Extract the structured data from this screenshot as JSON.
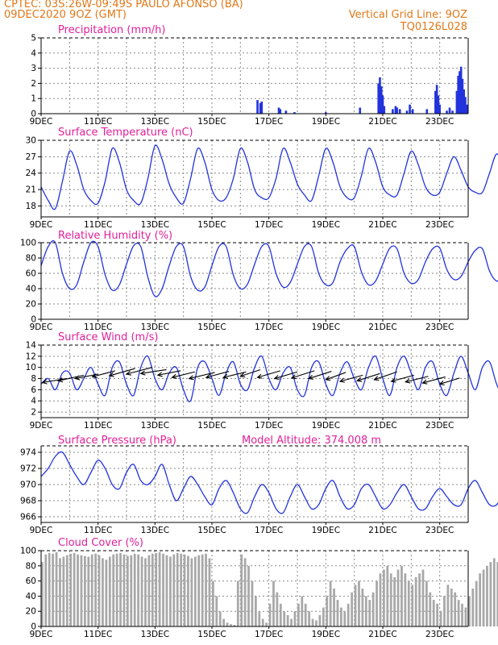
{
  "header": {
    "line1": "CPTEC:  03S:26W-09:49S  PAULO AFONSO (BA)",
    "line2": "09DEC2020 9OZ (GMT)",
    "grid_note": "Vertical Grid Line: 9OZ",
    "code": "TQ0126L028"
  },
  "colors": {
    "header": "#e07818",
    "title": "#e0209a",
    "line": "#2233dd",
    "cloud": "#a8a8a8"
  },
  "x_axis": {
    "start_day": 9,
    "end_day": 24,
    "tick_labels": [
      "9DEC",
      "11DEC",
      "13DEC",
      "15DEC",
      "17DEC",
      "19DEC",
      "21DEC",
      "23DEC"
    ],
    "tick_days": [
      9,
      11,
      13,
      15,
      17,
      19,
      21,
      23
    ]
  },
  "chart_data": [
    {
      "type": "bar",
      "title": "Precipitation (mm/h)",
      "ylim": [
        0,
        5
      ],
      "yticks": [
        0,
        1,
        2,
        3,
        4,
        5
      ],
      "points": [
        [
          16.6,
          0.9
        ],
        [
          16.7,
          0.7
        ],
        [
          16.75,
          0.8
        ],
        [
          17.35,
          0.4
        ],
        [
          17.4,
          0.3
        ],
        [
          17.6,
          0.2
        ],
        [
          17.9,
          0.1
        ],
        [
          19.0,
          0.1
        ],
        [
          20.2,
          0.4
        ],
        [
          20.85,
          2.0
        ],
        [
          20.9,
          2.4
        ],
        [
          20.95,
          1.8
        ],
        [
          21.0,
          1.2
        ],
        [
          21.05,
          0.5
        ],
        [
          21.35,
          0.3
        ],
        [
          21.45,
          0.5
        ],
        [
          21.5,
          0.4
        ],
        [
          21.6,
          0.3
        ],
        [
          21.85,
          0.2
        ],
        [
          21.95,
          0.6
        ],
        [
          22.05,
          0.3
        ],
        [
          22.55,
          0.3
        ],
        [
          22.85,
          1.5
        ],
        [
          22.9,
          1.9
        ],
        [
          22.95,
          1.2
        ],
        [
          23.0,
          0.6
        ],
        [
          23.25,
          0.2
        ],
        [
          23.35,
          0.4
        ],
        [
          23.45,
          0.2
        ],
        [
          23.6,
          1.5
        ],
        [
          23.65,
          2.5
        ],
        [
          23.7,
          2.8
        ],
        [
          23.75,
          3.1
        ],
        [
          23.8,
          2.3
        ],
        [
          23.85,
          1.6
        ],
        [
          23.9,
          1.1
        ],
        [
          23.95,
          0.6
        ]
      ]
    },
    {
      "type": "line",
      "title": "Surface Temperature (nC)",
      "ylim": [
        16,
        30
      ],
      "yticks": [
        18,
        21,
        24,
        27,
        30
      ],
      "series": [
        {
          "x_start": 9.0,
          "x_step": 0.25,
          "values": [
            21.5,
            19.0,
            17.5,
            22.5,
            28.0,
            25.5,
            21.0,
            19.0,
            18.5,
            22.5,
            28.5,
            26.0,
            21.0,
            19.0,
            18.5,
            23.0,
            29.0,
            26.5,
            22.0,
            19.5,
            18.5,
            23.0,
            28.5,
            26.0,
            21.0,
            19.0,
            19.5,
            23.0,
            28.5,
            26.0,
            21.0,
            19.5,
            19.5,
            23.0,
            28.5,
            26.0,
            22.0,
            20.0,
            19.0,
            23.5,
            28.5,
            26.0,
            21.5,
            19.5,
            19.5,
            23.5,
            28.5,
            26.0,
            21.5,
            20.0,
            20.0,
            24.0,
            28.0,
            25.5,
            21.5,
            20.0,
            20.5,
            24.0,
            27.0,
            24.5,
            21.5,
            20.5,
            20.5,
            24.0,
            27.5,
            25.0,
            21.5,
            20.0,
            20.5,
            24.0,
            28.5,
            25.5,
            22.0,
            20.5,
            20.5,
            23.5,
            27.0,
            24.5,
            21.5,
            20.0,
            20.0,
            23.5,
            26.0,
            23.5,
            21.0,
            20.0,
            21.0,
            24.0,
            26.5,
            24.0,
            21.0,
            20.0,
            20.0,
            23.5,
            27.5,
            25.0,
            21.0,
            20.0,
            20.0,
            23.5,
            27.0,
            24.5,
            21.5,
            20.5,
            21.0,
            24.0,
            28.0,
            25.0,
            21.5,
            20.5,
            21.0,
            24.0,
            25.5,
            23.5,
            22.0,
            21.0,
            20.5,
            23.0,
            25.0,
            23.5,
            21.0
          ]
        }
      ]
    },
    {
      "type": "line",
      "title": "Relative Humidity (%)",
      "ylim": [
        0,
        100
      ],
      "yticks": [
        0,
        20,
        40,
        60,
        80,
        100
      ],
      "series": [
        {
          "x_start": 9.0,
          "x_step": 0.25,
          "values": [
            70,
            95,
            100,
            60,
            40,
            45,
            75,
            100,
            95,
            58,
            38,
            45,
            72,
            96,
            95,
            55,
            30,
            40,
            70,
            95,
            95,
            56,
            38,
            42,
            70,
            95,
            95,
            58,
            40,
            46,
            72,
            95,
            95,
            60,
            42,
            48,
            72,
            95,
            95,
            60,
            45,
            48,
            75,
            92,
            95,
            62,
            45,
            50,
            72,
            93,
            92,
            60,
            47,
            52,
            75,
            92,
            93,
            65,
            52,
            56,
            75,
            90,
            92,
            63,
            50,
            56,
            78,
            95,
            92,
            65,
            48,
            52,
            75,
            93,
            95,
            70,
            55,
            60,
            78,
            95,
            92,
            72,
            62,
            66,
            82,
            95,
            90,
            75,
            70,
            75,
            90,
            100,
            90,
            72,
            65,
            70,
            95,
            100,
            95,
            72,
            60,
            68,
            88,
            95,
            95,
            75,
            62,
            70,
            92,
            100,
            98,
            75,
            64,
            72,
            92,
            98,
            96,
            78,
            95
          ]
        }
      ]
    },
    {
      "type": "line",
      "title": "Surface Wind (m/s)",
      "ylim": [
        1,
        14
      ],
      "yticks": [
        2,
        4,
        6,
        8,
        10,
        12,
        14
      ],
      "series": [
        {
          "x_start": 9.0,
          "x_step": 0.25,
          "values": [
            7,
            8,
            6,
            9,
            9,
            6,
            8,
            10,
            7,
            5,
            10,
            11,
            7,
            5,
            10,
            12,
            8,
            6,
            9,
            10,
            6,
            4,
            10,
            11,
            8,
            5,
            9,
            11,
            7,
            6,
            10,
            12,
            8,
            6,
            9,
            10,
            6,
            5,
            10,
            11,
            7,
            5,
            9,
            11,
            8,
            6,
            10,
            12,
            8,
            5,
            10,
            12,
            9,
            6,
            10,
            11,
            7,
            5,
            9,
            12,
            9,
            6,
            10,
            11,
            7,
            5,
            8,
            10,
            6,
            4,
            9,
            12,
            8,
            5,
            9,
            11,
            7,
            5,
            9,
            10,
            7,
            4,
            9,
            11,
            6,
            3,
            9,
            10,
            7,
            5,
            9,
            11,
            7,
            4,
            9,
            12,
            7,
            4,
            9,
            10,
            7,
            6,
            9,
            10,
            6,
            4,
            9,
            11,
            7,
            5,
            8,
            9,
            6,
            3,
            8,
            10,
            7,
            7,
            6
          ]
        }
      ],
      "arrows": [
        [
          9.05,
          7.3,
          9.9,
          8.0
        ],
        [
          9.6,
          7.6,
          10.5,
          8.6
        ],
        [
          10.2,
          8.0,
          11.0,
          8.8
        ],
        [
          10.8,
          8.3,
          11.6,
          9.4
        ],
        [
          11.4,
          8.5,
          12.3,
          9.8
        ],
        [
          12.0,
          8.8,
          12.9,
          10.0
        ],
        [
          12.5,
          8.9,
          13.4,
          9.6
        ],
        [
          13.1,
          8.6,
          13.9,
          9.4
        ],
        [
          13.6,
          8.2,
          14.4,
          9.2
        ],
        [
          14.2,
          8.0,
          15.1,
          9.1
        ],
        [
          14.8,
          8.2,
          15.6,
          9.3
        ],
        [
          15.4,
          8.2,
          16.2,
          9.2
        ],
        [
          16.0,
          8.4,
          16.7,
          9.6
        ],
        [
          16.6,
          8.2,
          17.4,
          9.4
        ],
        [
          17.2,
          8.0,
          18.0,
          9.2
        ],
        [
          17.8,
          8.1,
          18.6,
          9.4
        ],
        [
          18.4,
          8.0,
          19.2,
          9.3
        ],
        [
          19.0,
          7.8,
          19.7,
          9.1
        ],
        [
          19.5,
          7.5,
          20.3,
          8.6
        ],
        [
          20.1,
          7.6,
          20.9,
          8.9
        ],
        [
          20.7,
          7.8,
          21.5,
          9.2
        ],
        [
          21.3,
          7.5,
          22.1,
          8.6
        ],
        [
          21.8,
          7.4,
          22.6,
          8.4
        ],
        [
          22.4,
          7.2,
          23.2,
          8.3
        ],
        [
          23.0,
          7.0,
          23.7,
          8.1
        ]
      ]
    },
    {
      "type": "line",
      "title": "Surface Pressure (hPa)",
      "annotation": "Model Altitude: 374.008 m",
      "ylim": [
        965.3,
        974.8
      ],
      "yticks": [
        966,
        968,
        970,
        972,
        974
      ],
      "series": [
        {
          "x_start": 9.0,
          "x_step": 0.25,
          "values": [
            971.0,
            972.0,
            973.5,
            974.0,
            972.5,
            971.0,
            970.0,
            971.5,
            973.0,
            972.0,
            970.0,
            969.5,
            971.5,
            972.5,
            970.5,
            970.0,
            971.0,
            972.5,
            970.0,
            968.0,
            969.5,
            971.0,
            970.0,
            968.5,
            967.5,
            969.5,
            970.5,
            969.0,
            967.0,
            966.5,
            968.5,
            970.0,
            969.0,
            967.0,
            966.5,
            968.5,
            970.0,
            968.5,
            967.0,
            967.5,
            969.5,
            970.5,
            968.5,
            967.0,
            967.5,
            969.5,
            970.0,
            968.5,
            967.0,
            967.5,
            969.0,
            970.0,
            968.5,
            967.0,
            967.0,
            968.5,
            969.5,
            968.5,
            967.5,
            967.5,
            969.5,
            970.5,
            969.0,
            967.5,
            967.5,
            969.0,
            970.0,
            968.5,
            967.0,
            967.5,
            969.0,
            970.0,
            968.5,
            967.0,
            967.0,
            968.5,
            969.5,
            968.5,
            966.5,
            967.0,
            969.0,
            969.5,
            968.0,
            966.5,
            967.5,
            969.0,
            970.0,
            968.5,
            967.0,
            967.0,
            968.5,
            969.5,
            968.0,
            966.5,
            966.5,
            968.0,
            969.0,
            967.5,
            966.0,
            966.5,
            968.0,
            968.5,
            967.5,
            966.0,
            966.5,
            968.0,
            969.0,
            967.5,
            966.5,
            966.5,
            968.0,
            968.5,
            967.5,
            966.0,
            966.0,
            967.5,
            968.5,
            968.0,
            966.5,
            968.0
          ]
        }
      ]
    },
    {
      "type": "bar",
      "title": "Cloud Cover (%)",
      "ylim": [
        0,
        100
      ],
      "yticks": [
        0,
        20,
        40,
        60,
        80,
        100
      ],
      "x_start": 9.0,
      "x_step": 0.125,
      "values": [
        85,
        95,
        97,
        96,
        98,
        90,
        92,
        94,
        96,
        97,
        95,
        94,
        93,
        92,
        95,
        96,
        94,
        90,
        88,
        92,
        95,
        96,
        97,
        95,
        93,
        94,
        96,
        95,
        92,
        90,
        94,
        96,
        97,
        98,
        96,
        94,
        92,
        95,
        97,
        96,
        95,
        93,
        90,
        92,
        94,
        95,
        96,
        90,
        60,
        40,
        20,
        10,
        5,
        3,
        2,
        60,
        95,
        90,
        80,
        60,
        40,
        20,
        10,
        5,
        30,
        60,
        45,
        30,
        20,
        15,
        10,
        20,
        30,
        40,
        30,
        20,
        10,
        8,
        15,
        25,
        40,
        60,
        50,
        35,
        25,
        20,
        30,
        45,
        55,
        60,
        50,
        40,
        35,
        45,
        60,
        70,
        75,
        80,
        70,
        65,
        75,
        80,
        70,
        60,
        55,
        65,
        70,
        75,
        60,
        45,
        35,
        30,
        20,
        40,
        55,
        50,
        45,
        35,
        30,
        25,
        40,
        50,
        60,
        70,
        75,
        80,
        85,
        90,
        85,
        80,
        75,
        85,
        90,
        95,
        90,
        85,
        80,
        85,
        90,
        92,
        95,
        90,
        85,
        80,
        90,
        95,
        97,
        95,
        90,
        95,
        97,
        96,
        94,
        90,
        85,
        88,
        92,
        95,
        97,
        98,
        96,
        95,
        97,
        98,
        99,
        97,
        95,
        92,
        90,
        94,
        96,
        98,
        97,
        95,
        96,
        98,
        99,
        97,
        96,
        95,
        97,
        98,
        99,
        98,
        97,
        96,
        94,
        95,
        97,
        98,
        99,
        98,
        97,
        96,
        95,
        97,
        98,
        99,
        98,
        97,
        99,
        98,
        97,
        96,
        98,
        99,
        98,
        97,
        96,
        98,
        99,
        97,
        96,
        95,
        97,
        98,
        99,
        98,
        97,
        99,
        98,
        97,
        99,
        98
      ]
    }
  ]
}
